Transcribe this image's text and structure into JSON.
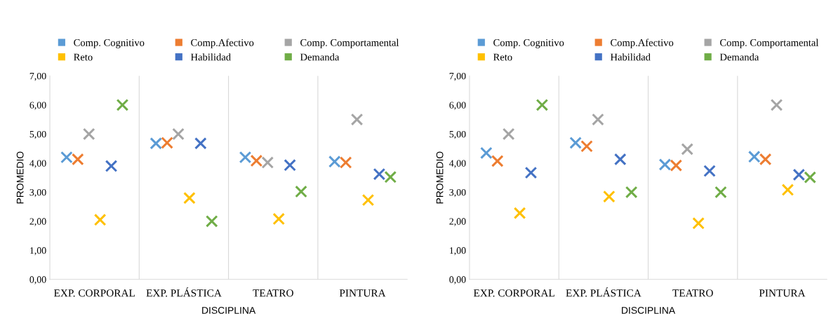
{
  "chart_data": [
    {
      "type": "scatter",
      "xlabel": "DISCIPLINA",
      "ylabel": "PROMEDIO",
      "categories": [
        "EXP. CORPORAL",
        "EXP. PLÁSTICA",
        "TEATRO",
        "PINTURA"
      ],
      "ylim": [
        0,
        7
      ],
      "yticks": [
        {
          "value": 0,
          "label": "0,00"
        },
        {
          "value": 1,
          "label": "1,00"
        },
        {
          "value": 2,
          "label": "2,00"
        },
        {
          "value": 3,
          "label": "3,00"
        },
        {
          "value": 4,
          "label": "4,00"
        },
        {
          "value": 5,
          "label": "5,00"
        },
        {
          "value": 6,
          "label": "6,00"
        },
        {
          "value": 7,
          "label": "7,00"
        }
      ],
      "grid": "x",
      "legend": "top",
      "marker": "cross",
      "series": [
        {
          "name": "Comp. Cognitivo",
          "color": "#5b9bd5",
          "values": [
            4.2,
            4.68,
            4.2,
            4.05
          ]
        },
        {
          "name": "Comp.Afectivo",
          "color": "#ed7d31",
          "values": [
            4.13,
            4.7,
            4.08,
            4.02
          ]
        },
        {
          "name": "Comp. Comportamental",
          "color": "#a5a5a5",
          "values": [
            5.0,
            5.0,
            4.02,
            5.5
          ]
        },
        {
          "name": "Reto",
          "color": "#ffc000",
          "values": [
            2.05,
            2.8,
            2.08,
            2.73
          ]
        },
        {
          "name": "Habilidad",
          "color": "#4472c4",
          "values": [
            3.9,
            4.68,
            3.93,
            3.62
          ]
        },
        {
          "name": "Demanda",
          "color": "#70ad47",
          "values": [
            6.0,
            2.0,
            3.02,
            3.52
          ]
        }
      ]
    },
    {
      "type": "scatter",
      "xlabel": "DISCIPLINA",
      "ylabel": "PROMEDIO",
      "categories": [
        "EXP. CORPORAL",
        "EXP. PLÁSTICA",
        "TEATRO",
        "PINTURA"
      ],
      "ylim": [
        0,
        7
      ],
      "yticks": [
        {
          "value": 0,
          "label": "0,00"
        },
        {
          "value": 1,
          "label": "1,00"
        },
        {
          "value": 2,
          "label": "2,00"
        },
        {
          "value": 3,
          "label": "3,00"
        },
        {
          "value": 4,
          "label": "4,00"
        },
        {
          "value": 5,
          "label": "5,00"
        },
        {
          "value": 6,
          "label": "6,00"
        },
        {
          "value": 7,
          "label": "7,00"
        }
      ],
      "grid": "x",
      "legend": "top",
      "marker": "cross",
      "series": [
        {
          "name": "Comp. Cognitivo",
          "color": "#5b9bd5",
          "values": [
            4.35,
            4.7,
            3.95,
            4.22
          ]
        },
        {
          "name": "Comp.Afectivo",
          "color": "#ed7d31",
          "values": [
            4.07,
            4.58,
            3.92,
            4.13
          ]
        },
        {
          "name": "Comp. Comportamental",
          "color": "#a5a5a5",
          "values": [
            5.0,
            5.5,
            4.48,
            6.0
          ]
        },
        {
          "name": "Reto",
          "color": "#ffc000",
          "values": [
            2.28,
            2.85,
            1.93,
            3.08
          ]
        },
        {
          "name": "Habilidad",
          "color": "#4472c4",
          "values": [
            3.67,
            4.13,
            3.73,
            3.6
          ]
        },
        {
          "name": "Demanda",
          "color": "#70ad47",
          "values": [
            6.0,
            3.0,
            3.0,
            3.51
          ]
        }
      ]
    }
  ]
}
